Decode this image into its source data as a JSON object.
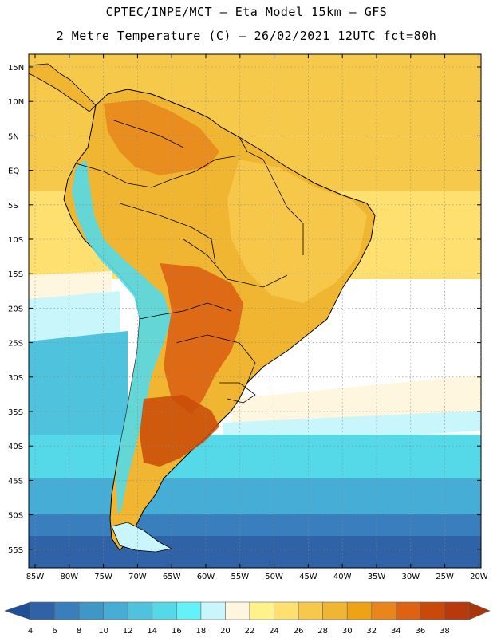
{
  "title": {
    "line1": "CPTEC/INPE/MCT –  Eta Model 15km – GFS",
    "line2": "2 Metre Temperature (C) – 26/02/2021 12UTC fct=80h"
  },
  "lat_labels": [
    "15N",
    "10N",
    "5N",
    "EQ",
    "5S",
    "10S",
    "15S",
    "20S",
    "25S",
    "30S",
    "35S",
    "40S",
    "45S",
    "50S",
    "55S"
  ],
  "lon_labels": [
    "85W",
    "80W",
    "75W",
    "70W",
    "65W",
    "60W",
    "55W",
    "50W",
    "45W",
    "40W",
    "35W",
    "30W",
    "25W",
    "20W"
  ],
  "colorbar": {
    "labels": [
      "4",
      "6",
      "8",
      "10",
      "12",
      "14",
      "16",
      "18",
      "20",
      "22",
      "24",
      "26",
      "28",
      "30",
      "32",
      "34",
      "36",
      "38"
    ],
    "colors": [
      "#2f62a6",
      "#3a7fbd",
      "#3f97c8",
      "#46aed6",
      "#4fc3de",
      "#55d9e8",
      "#62f2f8",
      "#c9f6fb",
      "#fff6df",
      "#fff28a",
      "#fde070",
      "#f6c94a",
      "#f0b632",
      "#eea214",
      "#e8861c",
      "#dd6212",
      "#c94a08",
      "#b8390b"
    ],
    "under_color": "#1e4f97",
    "over_color": "#a8360a"
  },
  "map_colors": {
    "ocean_far": "#2c5c9f",
    "ocean_mid": "#3d90c4",
    "ocean_cyan": "#4ed2e6",
    "ocean_light": "#c9f6fb",
    "ocean_cream": "#fff6df",
    "ocean_yellow": "#fde070",
    "ocean_tropic": "#f6c94a",
    "land_base": "#f0b632",
    "land_hot": "#dd6212",
    "land_hotter": "#c94a08",
    "andes": "#55d9e8"
  }
}
